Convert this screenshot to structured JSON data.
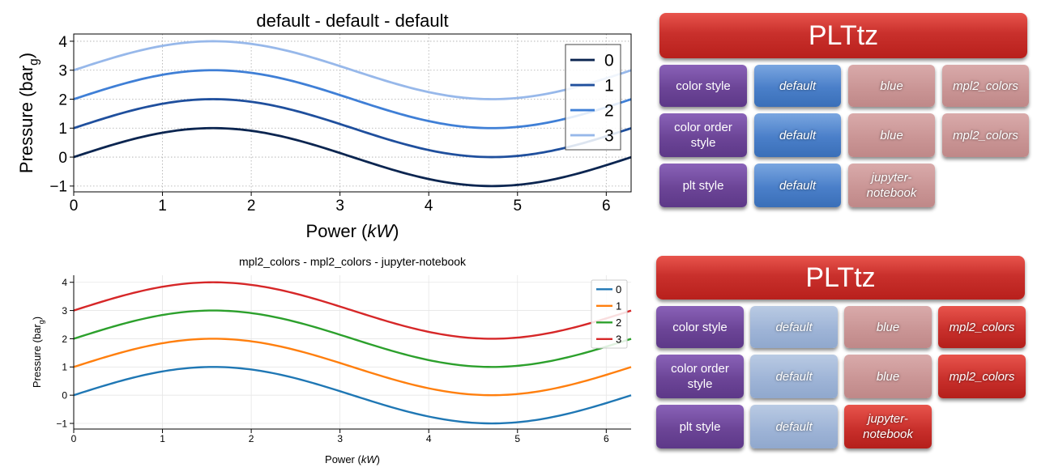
{
  "chart_data": [
    {
      "type": "line",
      "title": "default - default - default",
      "xlabel": "Power (kW)",
      "ylabel": "Pressure (bar_g)",
      "xlim": [
        0,
        6.28
      ],
      "ylim": [
        -1.2,
        4.25
      ],
      "xticks": [
        0,
        1,
        2,
        3,
        4,
        5,
        6
      ],
      "yticks": [
        -1,
        0,
        1,
        2,
        3,
        4
      ],
      "grid": true,
      "legend_position": "upper-right",
      "series_function": "y = sin(x) + offset",
      "series": [
        {
          "name": "0",
          "offset": 0,
          "color": "#0b2550"
        },
        {
          "name": "1",
          "offset": 1,
          "color": "#1f4f9d"
        },
        {
          "name": "2",
          "offset": 2,
          "color": "#3f7fd6"
        },
        {
          "name": "3",
          "offset": 3,
          "color": "#97b8ea"
        }
      ]
    },
    {
      "type": "line",
      "title": "mpl2_colors - mpl2_colors - jupyter-notebook",
      "xlabel": "Power (kW)",
      "ylabel": "Pressure (bar_g)",
      "xlim": [
        0,
        6.28
      ],
      "ylim": [
        -1.2,
        4.25
      ],
      "xticks": [
        0,
        1,
        2,
        3,
        4,
        5,
        6
      ],
      "yticks": [
        -1,
        0,
        1,
        2,
        3,
        4
      ],
      "grid": true,
      "legend_position": "upper-right",
      "series_function": "y = sin(x) + offset",
      "series": [
        {
          "name": "0",
          "offset": 0,
          "color": "#1f77b4"
        },
        {
          "name": "1",
          "offset": 1,
          "color": "#ff7f0e"
        },
        {
          "name": "2",
          "offset": 2,
          "color": "#2ca02c"
        },
        {
          "name": "3",
          "offset": 3,
          "color": "#d62728"
        }
      ]
    }
  ],
  "panels": [
    {
      "title": "PLTtz",
      "rows": [
        {
          "label": "color style",
          "options": [
            {
              "text": "default",
              "state": "blue-on"
            },
            {
              "text": "blue",
              "state": "rose-off"
            },
            {
              "text": "mpl2_colors",
              "state": "rose-off"
            }
          ]
        },
        {
          "label": "color order style",
          "options": [
            {
              "text": "default",
              "state": "blue-on"
            },
            {
              "text": "blue",
              "state": "rose-off"
            },
            {
              "text": "mpl2_colors",
              "state": "rose-off"
            }
          ]
        },
        {
          "label": "plt style",
          "options": [
            {
              "text": "default",
              "state": "blue-on"
            },
            {
              "text": "jupyter-notebook",
              "state": "rose-off"
            }
          ]
        }
      ]
    },
    {
      "title": "PLTtz",
      "rows": [
        {
          "label": "color style",
          "options": [
            {
              "text": "default",
              "state": "blue-off"
            },
            {
              "text": "blue",
              "state": "rose-off"
            },
            {
              "text": "mpl2_colors",
              "state": "red-on"
            }
          ]
        },
        {
          "label": "color order style",
          "options": [
            {
              "text": "default",
              "state": "blue-off"
            },
            {
              "text": "blue",
              "state": "rose-off"
            },
            {
              "text": "mpl2_colors",
              "state": "red-on"
            }
          ]
        },
        {
          "label": "plt style",
          "options": [
            {
              "text": "default",
              "state": "blue-off"
            },
            {
              "text": "jupyter-notebook",
              "state": "red-on"
            }
          ]
        }
      ]
    }
  ]
}
